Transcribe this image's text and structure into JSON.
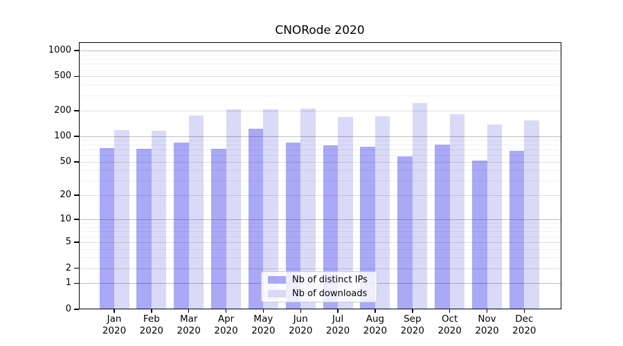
{
  "title": "CNORode 2020",
  "chart_data": {
    "type": "bar",
    "title": "CNORode 2020",
    "categories": [
      "Jan",
      "Feb",
      "Mar",
      "Apr",
      "May",
      "Jun",
      "Jul",
      "Aug",
      "Sep",
      "Oct",
      "Nov",
      "Dec"
    ],
    "category_year": "2020",
    "series": [
      {
        "name": "Nb of distinct IPs",
        "color": "#a9a9f6",
        "values": [
          73,
          71,
          84,
          71,
          122,
          85,
          78,
          76,
          58,
          80,
          52,
          68
        ]
      },
      {
        "name": "Nb of downloads",
        "color": "#d9d9f8",
        "values": [
          119,
          117,
          176,
          208,
          206,
          212,
          168,
          172,
          243,
          183,
          138,
          153
        ]
      }
    ],
    "yscale": "symlog",
    "yticks": [
      0,
      1,
      2,
      5,
      10,
      20,
      50,
      100,
      200,
      500,
      1000
    ],
    "ytick_labels": [
      "0",
      "1",
      "2",
      "5",
      "10",
      "20",
      "50",
      "100",
      "200",
      "500",
      "1000"
    ],
    "ylim": [
      0,
      1200
    ],
    "xlabel": "",
    "ylabel": "",
    "grid": true,
    "grid_major_at": [
      1,
      10,
      100,
      1000
    ],
    "grid_mid_at": [
      2,
      5,
      20,
      50,
      200,
      500
    ],
    "grid_minor_factors": [
      3,
      4,
      6,
      7,
      8,
      9
    ],
    "legend_position": "lower center"
  },
  "legend": {
    "items": [
      {
        "label": "Nb of distinct IPs",
        "swatch_color": "#a9a9f6"
      },
      {
        "label": "Nb of downloads",
        "swatch_color": "#d9d9f8"
      }
    ]
  },
  "colors": {
    "bar_distinct_ips": "#a9a9f6",
    "bar_downloads": "#d9d9f8",
    "grid_major": "rgba(0,0,0,0.25)",
    "grid_mid": "rgba(0,0,0,0.13)",
    "grid_minor": "rgba(0,0,0,0.06)",
    "axis": "#000000"
  }
}
